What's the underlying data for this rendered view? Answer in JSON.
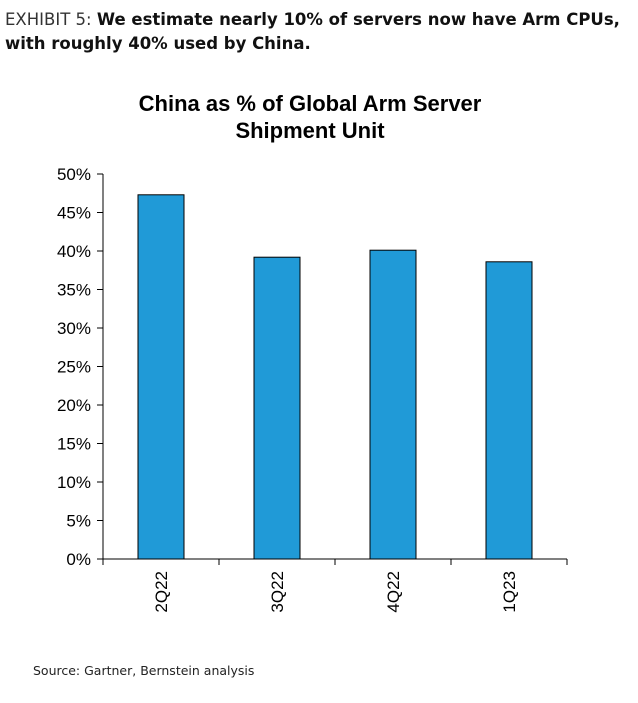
{
  "exhibit": {
    "label": "EXHIBIT 5: ",
    "headline": "We estimate nearly 10% of servers now have Arm CPUs, with roughly 40% used by China."
  },
  "source": "Source: Gartner, Bernstein analysis",
  "chart_data": {
    "type": "bar",
    "title_lines": [
      "China as % of Global Arm Server",
      "Shipment Unit"
    ],
    "categories": [
      "2Q22",
      "3Q22",
      "4Q22",
      "1Q23"
    ],
    "series": [
      {
        "values": [
          47.3,
          39.2,
          40.1,
          38.6
        ]
      }
    ],
    "ylim": [
      0,
      50
    ],
    "yticks": [
      0,
      5,
      10,
      15,
      20,
      25,
      30,
      35,
      40,
      45,
      50
    ],
    "ytick_labels": [
      "0%",
      "5%",
      "10%",
      "15%",
      "20%",
      "25%",
      "30%",
      "35%",
      "40%",
      "45%",
      "50%"
    ],
    "grid": false,
    "legend": "none",
    "bar_color": "#209ad7",
    "bar_edge_color": "#000000"
  }
}
